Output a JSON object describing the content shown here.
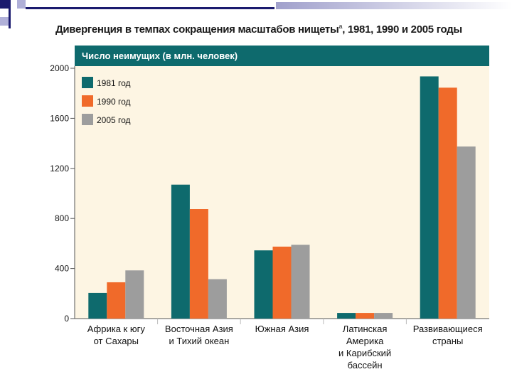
{
  "slide": {
    "title": "Дивергенция в темпах сокращения масштабов нищеты",
    "footnote_mark": "а",
    "title_years": ", 1981, 1990 и 2005 годы"
  },
  "chart_data": {
    "type": "bar",
    "header": "Число неимущих (в млн. человек)",
    "categories": [
      "Африка к югу\nот Сахары",
      "Восточная Азия\nи Тихий океан",
      "Южная Азия",
      "Латинская\nАмерика\nи Карибский\nбассейн",
      "Развивающиеся\nстраны"
    ],
    "series": [
      {
        "name": "1981 год",
        "color": "#0e6a6d",
        "values": [
          205,
          1070,
          545,
          45,
          1935
        ]
      },
      {
        "name": "1990 год",
        "color": "#f06a2a",
        "values": [
          290,
          875,
          575,
          45,
          1845
        ]
      },
      {
        "name": "2005 год",
        "color": "#9d9d9d",
        "values": [
          385,
          315,
          590,
          45,
          1375
        ]
      }
    ],
    "ylim": [
      0,
      2000
    ],
    "yticks": [
      0,
      400,
      800,
      1200,
      1600,
      2000
    ],
    "legend_position": "top-left",
    "colors": {
      "header_bg": "#0e6a6d",
      "plot_bg": "#fdf5e3",
      "separator": "#bbbbbb"
    }
  }
}
